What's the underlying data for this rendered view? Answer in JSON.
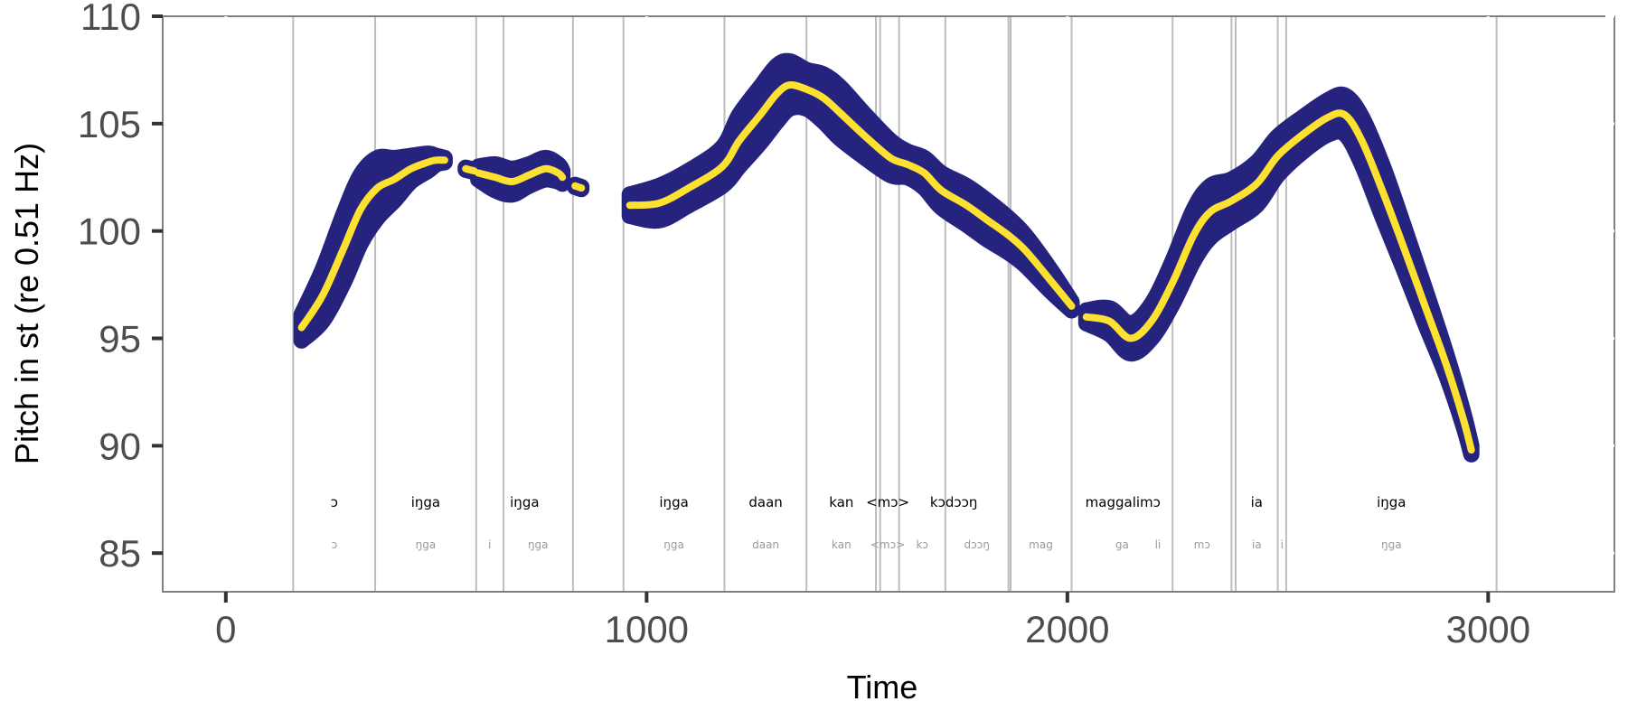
{
  "chart_data": {
    "type": "line",
    "xlabel": "Time",
    "ylabel": "Pitch in st (re 0.51 Hz)",
    "xlim": [
      -150,
      3300
    ],
    "ylim": [
      83.2,
      110
    ],
    "x_ticks": [
      0,
      1000,
      2000,
      3000
    ],
    "y_ticks": [
      85,
      90,
      95,
      100,
      105,
      110
    ],
    "colors": {
      "band": "#26237f",
      "line": "#fde131",
      "boundary": "#bdbdbd",
      "frame": "#808080"
    },
    "boundaries": [
      160,
      355,
      595,
      660,
      825,
      945,
      1185,
      1380,
      1545,
      1555,
      1600,
      1710,
      1860,
      1865,
      2010,
      2250,
      2390,
      2400,
      2500,
      2520,
      3020
    ],
    "word_labels": [
      {
        "text": "ɔ",
        "x": 258
      },
      {
        "text": "iŋga",
        "x": 475
      },
      {
        "text": "iŋga",
        "x": 710
      },
      {
        "text": "iŋga",
        "x": 1065
      },
      {
        "text": "daan",
        "x": 1283
      },
      {
        "text": "kan",
        "x": 1463
      },
      {
        "text": "<mɔ>",
        "x": 1573
      },
      {
        "text": "kɔdɔɔŋ",
        "x": 1730
      },
      {
        "text": "maggalimɔ",
        "x": 2132
      },
      {
        "text": "ia",
        "x": 2450
      },
      {
        "text": "iŋga",
        "x": 2770
      }
    ],
    "syllable_labels": [
      {
        "text": "ɔ",
        "x": 258
      },
      {
        "text": "ŋga",
        "x": 475
      },
      {
        "text": "i",
        "x": 627
      },
      {
        "text": "ŋga",
        "x": 742
      },
      {
        "text": "ŋga",
        "x": 1065
      },
      {
        "text": "daan",
        "x": 1283
      },
      {
        "text": "kan",
        "x": 1463
      },
      {
        "text": "<mɔ>",
        "x": 1573
      },
      {
        "text": "kɔ",
        "x": 1655
      },
      {
        "text": "dɔɔŋ",
        "x": 1785
      },
      {
        "text": "mag",
        "x": 1937
      },
      {
        "text": "ga",
        "x": 2130
      },
      {
        "text": "li",
        "x": 2215
      },
      {
        "text": "mɔ",
        "x": 2320
      },
      {
        "text": "ia",
        "x": 2450
      },
      {
        "text": "i",
        "x": 2510
      },
      {
        "text": "ŋga",
        "x": 2770
      }
    ],
    "series": [
      {
        "values": [
          [
            180,
            95.5
          ],
          [
            230,
            97
          ],
          [
            280,
            99.2
          ],
          [
            320,
            101
          ],
          [
            360,
            102
          ],
          [
            400,
            102.4
          ],
          [
            440,
            102.9
          ],
          [
            480,
            103.2
          ],
          [
            500,
            103.3
          ],
          [
            520,
            103.3
          ]
        ],
        "band": [
          [
            180,
            0.6
          ],
          [
            230,
            1.2
          ],
          [
            280,
            1.6
          ],
          [
            320,
            1.6
          ],
          [
            360,
            1.4
          ],
          [
            400,
            1.0
          ],
          [
            440,
            0.6
          ],
          [
            480,
            0.4
          ],
          [
            500,
            0.2
          ],
          [
            520,
            0.1
          ]
        ]
      },
      {
        "values": [
          [
            570,
            102.9
          ],
          [
            590,
            102.8
          ]
        ],
        "band": [
          [
            570,
            0.05
          ],
          [
            590,
            0.05
          ]
        ]
      },
      {
        "values": [
          [
            600,
            102.7
          ],
          [
            640,
            102.5
          ],
          [
            680,
            102.3
          ],
          [
            720,
            102.6
          ],
          [
            760,
            102.9
          ],
          [
            790,
            102.7
          ],
          [
            800,
            102.5
          ]
        ],
        "band": [
          [
            600,
            0.3
          ],
          [
            640,
            0.6
          ],
          [
            680,
            0.6
          ],
          [
            720,
            0.5
          ],
          [
            760,
            0.5
          ],
          [
            790,
            0.4
          ],
          [
            800,
            0.3
          ]
        ]
      },
      {
        "values": [
          [
            830,
            102.1
          ],
          [
            845,
            102.0
          ]
        ],
        "band": [
          [
            830,
            0.05
          ],
          [
            845,
            0.05
          ]
        ]
      },
      {
        "values": [
          [
            960,
            101.2
          ],
          [
            1030,
            101.3
          ],
          [
            1100,
            102
          ],
          [
            1180,
            103
          ],
          [
            1220,
            104.2
          ],
          [
            1270,
            105.4
          ],
          [
            1310,
            106.4
          ],
          [
            1340,
            106.8
          ],
          [
            1380,
            106.6
          ],
          [
            1420,
            106.2
          ],
          [
            1460,
            105.5
          ],
          [
            1520,
            104.4
          ],
          [
            1580,
            103.4
          ],
          [
            1620,
            103.1
          ],
          [
            1660,
            102.7
          ],
          [
            1700,
            101.9
          ],
          [
            1760,
            101.2
          ],
          [
            1810,
            100.5
          ],
          [
            1860,
            99.8
          ],
          [
            1900,
            99.1
          ],
          [
            1960,
            97.7
          ],
          [
            2010,
            96.5
          ]
        ],
        "band": [
          [
            960,
            0.5
          ],
          [
            1030,
            0.8
          ],
          [
            1100,
            0.8
          ],
          [
            1180,
            0.9
          ],
          [
            1220,
            1.2
          ],
          [
            1270,
            1.3
          ],
          [
            1310,
            1.3
          ],
          [
            1340,
            1.1
          ],
          [
            1380,
            0.9
          ],
          [
            1420,
            1.1
          ],
          [
            1460,
            1.2
          ],
          [
            1520,
            1.0
          ],
          [
            1580,
            0.8
          ],
          [
            1620,
            0.6
          ],
          [
            1660,
            0.7
          ],
          [
            1700,
            0.8
          ],
          [
            1760,
            0.9
          ],
          [
            1810,
            0.9
          ],
          [
            1860,
            0.8
          ],
          [
            1900,
            0.7
          ],
          [
            1960,
            0.5
          ],
          [
            2010,
            0.2
          ]
        ]
      },
      {
        "values": [
          [
            2045,
            96.0
          ],
          [
            2100,
            95.8
          ],
          [
            2150,
            95.0
          ],
          [
            2200,
            95.8
          ],
          [
            2250,
            97.6
          ],
          [
            2300,
            99.8
          ],
          [
            2340,
            100.9
          ],
          [
            2390,
            101.4
          ],
          [
            2450,
            102.2
          ],
          [
            2500,
            103.5
          ],
          [
            2560,
            104.5
          ],
          [
            2620,
            105.3
          ],
          [
            2660,
            105.4
          ],
          [
            2700,
            104.2
          ],
          [
            2750,
            101.8
          ],
          [
            2800,
            99.2
          ],
          [
            2850,
            96.5
          ],
          [
            2900,
            93.8
          ],
          [
            2940,
            91.3
          ],
          [
            2960,
            89.8
          ]
        ],
        "band": [
          [
            2045,
            0.3
          ],
          [
            2100,
            0.6
          ],
          [
            2150,
            0.7
          ],
          [
            2200,
            0.8
          ],
          [
            2250,
            1.0
          ],
          [
            2300,
            1.2
          ],
          [
            2340,
            1.2
          ],
          [
            2390,
            1.0
          ],
          [
            2450,
            1.0
          ],
          [
            2500,
            0.9
          ],
          [
            2560,
            0.8
          ],
          [
            2620,
            0.8
          ],
          [
            2660,
            0.9
          ],
          [
            2700,
            1.1
          ],
          [
            2750,
            1.2
          ],
          [
            2800,
            1.0
          ],
          [
            2850,
            0.8
          ],
          [
            2900,
            0.5
          ],
          [
            2940,
            0.3
          ],
          [
            2960,
            0.2
          ]
        ]
      }
    ]
  }
}
